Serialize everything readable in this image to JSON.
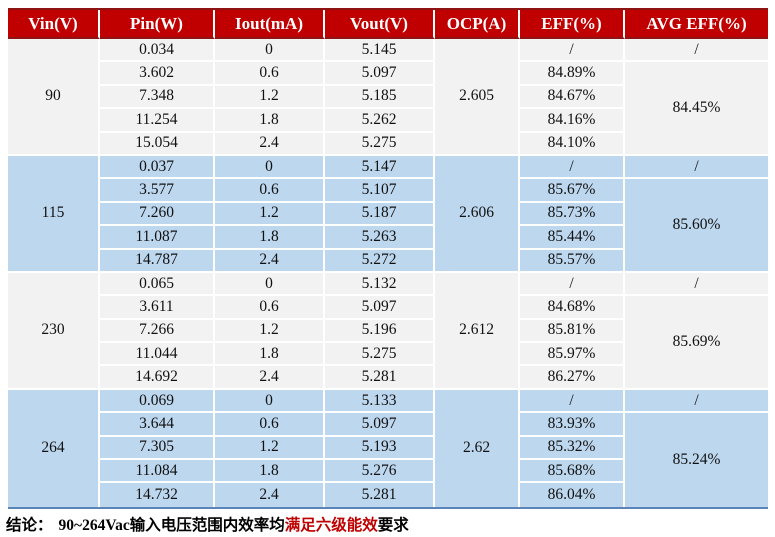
{
  "table": {
    "headers": [
      "Vin(V)",
      "Pin(W)",
      "Iout(mA)",
      "Vout(V)",
      "OCP(A)",
      "EFF(%)",
      "AVG EFF(%)"
    ],
    "groups": [
      {
        "vin": "90",
        "ocp": "2.605",
        "avg_eff_first": "/",
        "avg_eff": "84.45%",
        "rows": [
          {
            "pin": "0.034",
            "iout": "0",
            "vout": "5.145",
            "eff": "/"
          },
          {
            "pin": "3.602",
            "iout": "0.6",
            "vout": "5.097",
            "eff": "84.89%"
          },
          {
            "pin": "7.348",
            "iout": "1.2",
            "vout": "5.185",
            "eff": "84.67%"
          },
          {
            "pin": "11.254",
            "iout": "1.8",
            "vout": "5.262",
            "eff": "84.16%"
          },
          {
            "pin": "15.054",
            "iout": "2.4",
            "vout": "5.275",
            "eff": "84.10%"
          }
        ]
      },
      {
        "vin": "115",
        "ocp": "2.606",
        "avg_eff_first": "/",
        "avg_eff": "85.60%",
        "rows": [
          {
            "pin": "0.037",
            "iout": "0",
            "vout": "5.147",
            "eff": "/"
          },
          {
            "pin": "3.577",
            "iout": "0.6",
            "vout": "5.107",
            "eff": "85.67%"
          },
          {
            "pin": "7.260",
            "iout": "1.2",
            "vout": "5.187",
            "eff": "85.73%"
          },
          {
            "pin": "11.087",
            "iout": "1.8",
            "vout": "5.263",
            "eff": "85.44%"
          },
          {
            "pin": "14.787",
            "iout": "2.4",
            "vout": "5.272",
            "eff": "85.57%"
          }
        ]
      },
      {
        "vin": "230",
        "ocp": "2.612",
        "avg_eff_first": "/",
        "avg_eff": "85.69%",
        "rows": [
          {
            "pin": "0.065",
            "iout": "0",
            "vout": "5.132",
            "eff": "/"
          },
          {
            "pin": "3.611",
            "iout": "0.6",
            "vout": "5.097",
            "eff": "84.68%"
          },
          {
            "pin": "7.266",
            "iout": "1.2",
            "vout": "5.196",
            "eff": "85.81%"
          },
          {
            "pin": "11.044",
            "iout": "1.8",
            "vout": "5.275",
            "eff": "85.97%"
          },
          {
            "pin": "14.692",
            "iout": "2.4",
            "vout": "5.281",
            "eff": "86.27%"
          }
        ]
      },
      {
        "vin": "264",
        "ocp": "2.62",
        "avg_eff_first": "/",
        "avg_eff": "85.24%",
        "rows": [
          {
            "pin": "0.069",
            "iout": "0",
            "vout": "5.133",
            "eff": "/"
          },
          {
            "pin": "3.644",
            "iout": "0.6",
            "vout": "5.097",
            "eff": "83.93%"
          },
          {
            "pin": "7.305",
            "iout": "1.2",
            "vout": "5.193",
            "eff": "85.32%"
          },
          {
            "pin": "11.084",
            "iout": "1.8",
            "vout": "5.276",
            "eff": "85.68%"
          },
          {
            "pin": "14.732",
            "iout": "2.4",
            "vout": "5.281",
            "eff": "86.04%"
          }
        ]
      }
    ]
  },
  "conclusion": {
    "label": "结论：",
    "body": "90~264Vac输入电压范围内效率均",
    "highlight": "满足六级能效",
    "suffix": "要求"
  },
  "colors": {
    "header_bg": "#c00000",
    "header_border": "#8e1414",
    "row_light": "#f2f2f2",
    "row_blue": "#bdd7ee",
    "table_bottom_border": "#5b84b8",
    "conclusion_highlight": "#c00000"
  }
}
